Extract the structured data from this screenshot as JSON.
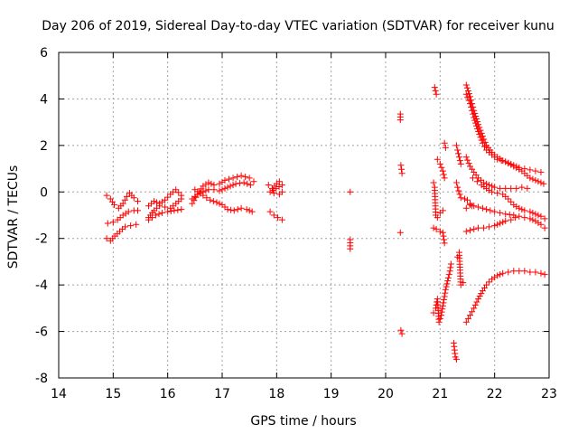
{
  "chart_data": {
    "type": "scatter",
    "title": "Day 206 of 2019, Sidereal Day-to-day VTEC variation (SDTVAR) for receiver kunu",
    "xlabel": "GPS time / hours",
    "ylabel": "SDTVAR / TECUs",
    "xlim": [
      14,
      23
    ],
    "ylim": [
      -8,
      6
    ],
    "xticks": [
      "14",
      "15",
      "16",
      "17",
      "18",
      "19",
      "20",
      "21",
      "22",
      "23"
    ],
    "yticks": [
      "-8",
      "-6",
      "-4",
      "-2",
      "0",
      "2",
      "4",
      "6"
    ],
    "grid": true,
    "marker": "+",
    "color": "#ff0000",
    "segments": [
      [
        [
          14.88,
          -0.15
        ],
        [
          14.95,
          -0.3
        ],
        [
          15.02,
          -0.55
        ],
        [
          15.1,
          -0.7
        ],
        [
          15.18,
          -0.5
        ],
        [
          15.25,
          -0.2
        ],
        [
          15.3,
          -0.05
        ],
        [
          15.38,
          -0.25
        ],
        [
          15.45,
          -0.4
        ]
      ],
      [
        [
          14.9,
          -1.35
        ],
        [
          15.0,
          -1.3
        ],
        [
          15.08,
          -1.2
        ],
        [
          15.18,
          -1.0
        ],
        [
          15.28,
          -0.85
        ],
        [
          15.38,
          -0.8
        ],
        [
          15.45,
          -0.8
        ]
      ],
      [
        [
          14.88,
          -2.0
        ],
        [
          14.95,
          -2.1
        ],
        [
          15.03,
          -1.9
        ],
        [
          15.12,
          -1.7
        ],
        [
          15.22,
          -1.5
        ],
        [
          15.32,
          -1.45
        ],
        [
          15.42,
          -1.4
        ]
      ],
      [
        [
          15.65,
          -0.6
        ],
        [
          15.75,
          -0.4
        ],
        [
          15.85,
          -0.5
        ],
        [
          15.95,
          -0.35
        ],
        [
          16.05,
          -0.1
        ],
        [
          16.15,
          0.1
        ],
        [
          16.25,
          -0.15
        ]
      ],
      [
        [
          15.65,
          -1.1
        ],
        [
          15.75,
          -0.8
        ],
        [
          15.85,
          -0.6
        ],
        [
          15.95,
          -0.65
        ],
        [
          16.05,
          -0.7
        ],
        [
          16.15,
          -0.5
        ],
        [
          16.25,
          -0.3
        ]
      ],
      [
        [
          15.65,
          -1.2
        ],
        [
          15.78,
          -1.0
        ],
        [
          15.9,
          -0.9
        ],
        [
          16.0,
          -0.85
        ],
        [
          16.12,
          -0.8
        ],
        [
          16.25,
          -0.75
        ]
      ],
      [
        [
          16.45,
          -0.5
        ],
        [
          16.55,
          -0.1
        ],
        [
          16.65,
          0.25
        ],
        [
          16.75,
          0.4
        ],
        [
          16.85,
          0.3
        ],
        [
          16.95,
          0.35
        ],
        [
          17.05,
          0.5
        ],
        [
          17.2,
          0.6
        ],
        [
          17.35,
          0.7
        ],
        [
          17.5,
          0.6
        ],
        [
          17.58,
          0.45
        ]
      ],
      [
        [
          16.45,
          -0.3
        ],
        [
          16.55,
          -0.1
        ],
        [
          16.65,
          0.0
        ],
        [
          16.75,
          0.1
        ],
        [
          16.85,
          0.1
        ],
        [
          16.95,
          0.05
        ],
        [
          17.1,
          0.2
        ],
        [
          17.25,
          0.35
        ],
        [
          17.4,
          0.4
        ],
        [
          17.52,
          0.3
        ]
      ],
      [
        [
          16.5,
          0.1
        ],
        [
          16.65,
          -0.15
        ],
        [
          16.78,
          -0.35
        ],
        [
          16.9,
          -0.45
        ],
        [
          17.0,
          -0.55
        ],
        [
          17.1,
          -0.75
        ],
        [
          17.22,
          -0.8
        ],
        [
          17.35,
          -0.7
        ],
        [
          17.45,
          -0.75
        ],
        [
          17.55,
          -0.85
        ]
      ],
      [
        [
          17.85,
          0.3
        ],
        [
          17.92,
          0.15
        ],
        [
          18.0,
          0.35
        ],
        [
          18.05,
          0.45
        ],
        [
          18.1,
          0.3
        ],
        [
          17.88,
          0.0
        ],
        [
          17.95,
          -0.05
        ],
        [
          18.05,
          -0.1
        ],
        [
          18.1,
          0.0
        ]
      ],
      [
        [
          17.88,
          -0.85
        ],
        [
          17.95,
          -1.0
        ],
        [
          18.02,
          -1.1
        ],
        [
          18.1,
          -1.2
        ]
      ],
      [
        [
          19.35,
          0.0
        ],
        [
          19.35,
          -2.05
        ],
        [
          19.35,
          -2.45
        ]
      ],
      [
        [
          20.27,
          3.35
        ],
        [
          20.27,
          3.1
        ],
        [
          20.28,
          1.15
        ],
        [
          20.3,
          0.8
        ],
        [
          20.27,
          -1.75
        ],
        [
          20.28,
          -5.95
        ],
        [
          20.3,
          -6.1
        ]
      ],
      [
        [
          20.9,
          4.5
        ],
        [
          20.93,
          4.2
        ],
        [
          20.88,
          0.4
        ],
        [
          20.9,
          0.2
        ],
        [
          20.92,
          -1.0
        ],
        [
          20.95,
          -1.1
        ],
        [
          21.0,
          -0.9
        ],
        [
          21.05,
          -0.8
        ]
      ],
      [
        [
          20.88,
          -1.55
        ],
        [
          20.93,
          -1.6
        ],
        [
          21.0,
          -1.7
        ],
        [
          21.05,
          -1.75
        ],
        [
          21.08,
          -2.2
        ]
      ],
      [
        [
          20.95,
          1.4
        ],
        [
          21.0,
          1.2
        ],
        [
          21.05,
          0.9
        ],
        [
          21.08,
          0.6
        ]
      ],
      [
        [
          21.08,
          2.1
        ],
        [
          21.1,
          1.9
        ]
      ],
      [
        [
          20.88,
          -5.2
        ],
        [
          20.92,
          -5.0
        ],
        [
          20.95,
          -4.6
        ],
        [
          20.98,
          -5.6
        ],
        [
          21.02,
          -5.3
        ],
        [
          21.05,
          -4.9
        ],
        [
          21.08,
          -4.5
        ],
        [
          21.1,
          -4.2
        ],
        [
          21.15,
          -3.7
        ],
        [
          21.18,
          -3.4
        ],
        [
          21.2,
          -3.1
        ]
      ],
      [
        [
          21.25,
          -6.5
        ],
        [
          21.28,
          -7.1
        ],
        [
          21.3,
          -7.2
        ]
      ],
      [
        [
          21.3,
          2.0
        ],
        [
          21.32,
          1.8
        ],
        [
          21.35,
          1.5
        ],
        [
          21.38,
          1.2
        ]
      ],
      [
        [
          21.3,
          0.4
        ],
        [
          21.32,
          0.2
        ],
        [
          21.38,
          -0.25
        ],
        [
          21.45,
          -0.3
        ],
        [
          21.5,
          -0.35
        ],
        [
          21.55,
          -0.5
        ],
        [
          21.58,
          -0.6
        ]
      ],
      [
        [
          21.32,
          -2.8
        ],
        [
          21.35,
          -2.6
        ],
        [
          21.38,
          -4.0
        ],
        [
          21.42,
          -3.9
        ]
      ],
      [
        [
          21.48,
          4.6
        ],
        [
          21.55,
          4.1
        ],
        [
          21.62,
          3.5
        ],
        [
          21.7,
          2.9
        ],
        [
          21.78,
          2.4
        ],
        [
          21.85,
          2.0
        ],
        [
          21.95,
          1.7
        ],
        [
          22.05,
          1.5
        ],
        [
          22.15,
          1.35
        ],
        [
          22.25,
          1.25
        ],
        [
          22.35,
          1.15
        ],
        [
          22.45,
          1.05
        ],
        [
          22.55,
          1.0
        ],
        [
          22.65,
          0.95
        ],
        [
          22.75,
          0.9
        ],
        [
          22.85,
          0.85
        ]
      ],
      [
        [
          21.48,
          4.2
        ],
        [
          21.55,
          3.8
        ],
        [
          21.62,
          3.2
        ],
        [
          21.7,
          2.6
        ],
        [
          21.78,
          2.1
        ],
        [
          21.85,
          1.8
        ],
        [
          21.95,
          1.6
        ],
        [
          22.05,
          1.4
        ],
        [
          22.2,
          1.3
        ],
        [
          22.35,
          1.1
        ],
        [
          22.5,
          0.9
        ],
        [
          22.65,
          0.6
        ],
        [
          22.8,
          0.45
        ],
        [
          22.9,
          0.35
        ]
      ],
      [
        [
          21.48,
          1.5
        ],
        [
          21.55,
          1.1
        ],
        [
          21.62,
          0.85
        ],
        [
          21.7,
          0.6
        ],
        [
          21.8,
          0.4
        ],
        [
          21.9,
          0.3
        ],
        [
          22.0,
          0.2
        ],
        [
          22.1,
          0.15
        ],
        [
          22.2,
          0.15
        ],
        [
          22.3,
          0.15
        ],
        [
          22.4,
          0.15
        ],
        [
          22.5,
          0.2
        ],
        [
          22.6,
          0.15
        ]
      ],
      [
        [
          21.6,
          0.6
        ],
        [
          21.68,
          0.45
        ],
        [
          21.76,
          0.3
        ],
        [
          21.85,
          0.15
        ],
        [
          21.95,
          0.0
        ],
        [
          22.05,
          -0.05
        ],
        [
          22.15,
          -0.1
        ],
        [
          22.25,
          -0.3
        ],
        [
          22.35,
          -0.55
        ],
        [
          22.45,
          -0.7
        ],
        [
          22.55,
          -0.8
        ],
        [
          22.65,
          -0.85
        ],
        [
          22.75,
          -0.95
        ],
        [
          22.85,
          -1.05
        ],
        [
          22.92,
          -1.15
        ]
      ],
      [
        [
          21.48,
          -0.7
        ],
        [
          21.55,
          -0.55
        ],
        [
          21.62,
          -0.6
        ],
        [
          21.7,
          -0.65
        ],
        [
          21.78,
          -0.7
        ],
        [
          21.85,
          -0.75
        ],
        [
          21.92,
          -0.8
        ],
        [
          22.0,
          -0.85
        ],
        [
          22.1,
          -0.9
        ],
        [
          22.2,
          -0.95
        ],
        [
          22.35,
          -1.0
        ],
        [
          22.45,
          -1.05
        ],
        [
          22.55,
          -1.1
        ],
        [
          22.65,
          -1.15
        ],
        [
          22.75,
          -1.25
        ],
        [
          22.85,
          -1.4
        ],
        [
          22.92,
          -1.55
        ]
      ],
      [
        [
          21.48,
          -1.7
        ],
        [
          21.55,
          -1.65
        ],
        [
          21.62,
          -1.6
        ],
        [
          21.7,
          -1.55
        ],
        [
          21.8,
          -1.55
        ],
        [
          21.9,
          -1.5
        ],
        [
          22.0,
          -1.45
        ],
        [
          22.1,
          -1.35
        ],
        [
          22.2,
          -1.25
        ],
        [
          22.3,
          -1.2
        ],
        [
          22.38,
          -1.1
        ]
      ],
      [
        [
          21.48,
          -5.6
        ],
        [
          21.55,
          -5.3
        ],
        [
          21.62,
          -5.0
        ],
        [
          21.7,
          -4.6
        ],
        [
          21.78,
          -4.25
        ],
        [
          21.85,
          -4.0
        ],
        [
          21.95,
          -3.75
        ],
        [
          22.05,
          -3.6
        ],
        [
          22.15,
          -3.5
        ],
        [
          22.25,
          -3.45
        ],
        [
          22.35,
          -3.4
        ],
        [
          22.45,
          -3.4
        ],
        [
          22.55,
          -3.4
        ],
        [
          22.65,
          -3.45
        ],
        [
          22.75,
          -3.45
        ],
        [
          22.85,
          -3.5
        ],
        [
          22.92,
          -3.55
        ]
      ]
    ]
  }
}
